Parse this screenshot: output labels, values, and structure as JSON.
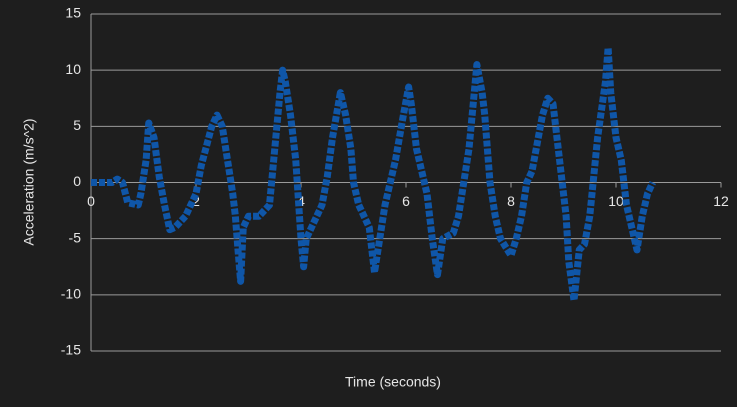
{
  "chart_data": {
    "type": "line",
    "x_label": "Time (seconds)",
    "y_label": "Acceleration (m/s^2)",
    "xlim": [
      0,
      12
    ],
    "xticks": [
      0,
      2,
      4,
      6,
      8,
      10,
      12
    ],
    "ylim": [
      -15,
      15
    ],
    "yticks": [
      -15,
      -10,
      -5,
      0,
      5,
      10,
      15
    ],
    "grid": true,
    "color": "#0f56a8",
    "x": [
      0,
      0.2,
      0.4,
      0.5,
      0.6,
      0.7,
      0.9,
      0.95,
      1.05,
      1.1,
      1.2,
      1.3,
      1.4,
      1.5,
      1.6,
      1.8,
      2.0,
      2.1,
      2.3,
      2.4,
      2.5,
      2.6,
      2.7,
      2.75,
      2.8,
      2.85,
      2.9,
      3.0,
      3.2,
      3.4,
      3.5,
      3.6,
      3.65,
      3.7,
      3.8,
      3.9,
      4.0,
      4.05,
      4.1,
      4.2,
      4.4,
      4.5,
      4.6,
      4.75,
      4.85,
      4.95,
      5.0,
      5.1,
      5.3,
      5.4,
      5.5,
      5.6,
      5.7,
      5.8,
      5.95,
      6.05,
      6.1,
      6.2,
      6.4,
      6.5,
      6.6,
      6.7,
      6.9,
      7.0,
      7.1,
      7.2,
      7.35,
      7.45,
      7.5,
      7.6,
      7.7,
      7.8,
      8.0,
      8.1,
      8.2,
      8.3,
      8.4,
      8.6,
      8.7,
      8.8,
      8.9,
      9.0,
      9.05,
      9.1,
      9.2,
      9.3,
      9.4,
      9.5,
      9.65,
      9.8,
      9.85,
      9.9,
      10.0,
      10.1,
      10.2,
      10.3,
      10.4,
      10.5,
      10.6,
      10.7
    ],
    "values": [
      0,
      0,
      0,
      0.3,
      0,
      -1.8,
      -2,
      -1,
      2,
      5.3,
      4,
      0.5,
      -2,
      -4.2,
      -4,
      -3,
      -1,
      1.5,
      5,
      6,
      5,
      2,
      -1,
      -3,
      -6,
      -8.8,
      -4,
      -3,
      -3,
      -2,
      3,
      8,
      10,
      9,
      6,
      2,
      -5,
      -7.5,
      -5,
      -4,
      -2,
      0.5,
      4,
      8,
      6,
      3,
      0,
      -2,
      -4,
      -8,
      -5,
      -2,
      0,
      2,
      6,
      8.5,
      7,
      3,
      -1,
      -5,
      -8.2,
      -5,
      -4.5,
      -3,
      0,
      3,
      10.5,
      8,
      6,
      0,
      -3,
      -5,
      -6.5,
      -5,
      -3,
      0,
      1,
      6,
      7.5,
      7,
      3,
      -1,
      -3,
      -7,
      -10.5,
      -6,
      -5.5,
      -3,
      4,
      9,
      12,
      8,
      4,
      2,
      -2,
      -4,
      -6,
      -3,
      -1,
      0
    ]
  }
}
